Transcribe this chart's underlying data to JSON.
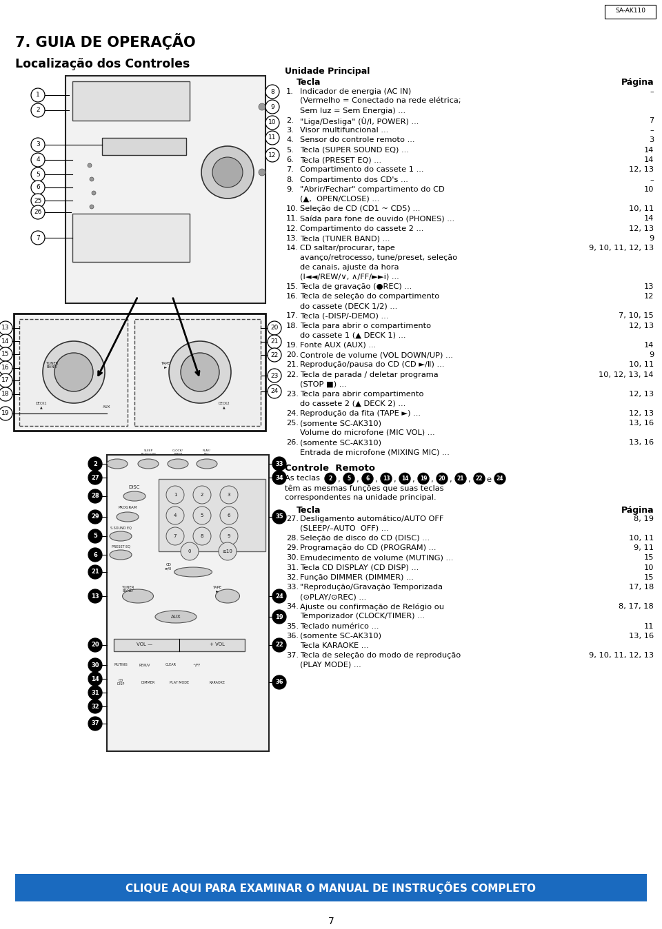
{
  "page_title": "7. GUIA DE OPERAÇÃO",
  "subtitle": "Localização dos Controles",
  "model_label": "SA-AK110",
  "section1_header1": "Unidade Principal",
  "section1_col1": "Tecla",
  "section1_col2": "Página",
  "items_main": [
    {
      "num": "1.",
      "line1": "Indicador de energia (AC IN)",
      "line2": "(Vermelho = Conectado na rede elétrica;",
      "line3": "Sem luz = Sem Energia) ...",
      "page": "–"
    },
    {
      "num": "2.",
      "line1": "\"Liga/Desliga\" (Ù/I, POWER) ...",
      "line2": "",
      "line3": "",
      "page": "7"
    },
    {
      "num": "3.",
      "line1": "Visor multifuncional ...",
      "line2": "",
      "line3": "",
      "page": "–"
    },
    {
      "num": "4.",
      "line1": "Sensor do controle remoto ...",
      "line2": "",
      "line3": "",
      "page": "3"
    },
    {
      "num": "5.",
      "line1": "Tecla (SUPER SOUND EQ) ...",
      "line2": "",
      "line3": "",
      "page": "14"
    },
    {
      "num": "6.",
      "line1": "Tecla (PRESET EQ) ...",
      "line2": "",
      "line3": "",
      "page": "14"
    },
    {
      "num": "7.",
      "line1": "Compartimento do cassete 1 ...",
      "line2": "",
      "line3": "",
      "page": "12, 13"
    },
    {
      "num": "8.",
      "line1": "Compartimento dos CD's ...",
      "line2": "",
      "line3": "",
      "page": "–"
    },
    {
      "num": "9.",
      "line1": "\"Abrir/Fechar\" compartimento do CD",
      "line2": "(▲,  OPEN/CLOSE) ...",
      "line3": "",
      "page": "10"
    },
    {
      "num": "10.",
      "line1": "Seleção de CD (CD1 ~ CD5) ...",
      "line2": "",
      "line3": "",
      "page": "10, 11"
    },
    {
      "num": "11.",
      "line1": "Saída para fone de ouvido (PHONES) ...",
      "line2": "",
      "line3": "",
      "page": "14"
    },
    {
      "num": "12.",
      "line1": "Compartimento do cassete 2 ...",
      "line2": "",
      "line3": "",
      "page": "12, 13"
    },
    {
      "num": "13.",
      "line1": "Tecla (TUNER BAND) ...",
      "line2": "",
      "line3": "",
      "page": "9"
    },
    {
      "num": "14.",
      "line1": "CD saltar/procurar, tape",
      "line2": "avanço/retrocesso, tune/preset, seleção",
      "line3": "de canais, ajuste da hora",
      "line4": "(I◄◄/REW/∨, ∧/FF/►►i) ...",
      "page": "9, 10, 11, 12, 13"
    },
    {
      "num": "15.",
      "line1": "Tecla de gravação (●REC) ...",
      "line2": "",
      "line3": "",
      "page": "13"
    },
    {
      "num": "16.",
      "line1": "Tecla de seleção do compartimento",
      "line2": "do cassete (DECK 1/2) ...",
      "line3": "",
      "page": "12"
    },
    {
      "num": "17.",
      "line1": "Tecla (-DISP/-DEMO) ...",
      "line2": "",
      "line3": "",
      "page": "7, 10, 15"
    },
    {
      "num": "18.",
      "line1": "Tecla para abrir o compartimento",
      "line2": "do cassete 1 (▲ DECK 1) ...",
      "line3": "",
      "page": "12, 13"
    },
    {
      "num": "19.",
      "line1": "Fonte AUX (AUX) ...",
      "line2": "",
      "line3": "",
      "page": "14"
    },
    {
      "num": "20.",
      "line1": "Controle de volume (VOL DOWN/UP) ...",
      "line2": "",
      "line3": "",
      "page": "9"
    },
    {
      "num": "21.",
      "line1": "Reprodução/pausa do CD (CD ►/Ⅱ) ...",
      "line2": "",
      "line3": "",
      "page": "10, 11"
    },
    {
      "num": "22.",
      "line1": "Tecla de parada / deletar programa",
      "line2": "(STOP ■) ...",
      "line3": "",
      "page": "10, 12, 13, 14"
    },
    {
      "num": "23.",
      "line1": "Tecla para abrir compartimento",
      "line2": "do cassete 2 (▲ DECK 2) ...",
      "line3": "",
      "page": "12, 13"
    },
    {
      "num": "24.",
      "line1": "Reprodução da fita (TAPE ►) ...",
      "line2": "",
      "line3": "",
      "page": "12, 13"
    },
    {
      "num": "25.",
      "line1": "(somente SC-AK310)",
      "line2": "Volume do microfone (MIC VOL) ...",
      "line3": "",
      "page": "13, 16"
    },
    {
      "num": "26.",
      "line1": "(somente SC-AK310)",
      "line2": "Entrada de microfone (MIXING MIC) ...",
      "line3": "",
      "page": "13, 16"
    }
  ],
  "section2_header": "Controle  Remoto",
  "section2_intro": "As teclas",
  "section2_numbers": [
    "2",
    "5",
    "6",
    "13",
    "14",
    "19",
    "20",
    "21",
    "22",
    "24"
  ],
  "section2_mid1": "têm as mesmas funções que suas teclas",
  "section2_mid2": "correspondentes na unidade principal.",
  "section2_col1": "Tecla",
  "section2_col2": "Página",
  "items_remote": [
    {
      "num": "27.",
      "line1": "Desligamento automático/AUTO OFF",
      "line2": "(SLEEP/–AUTO  OFF) ...",
      "line3": "",
      "page": "8, 19"
    },
    {
      "num": "28.",
      "line1": "Seleção de disco do CD (DISC) ...",
      "line2": "",
      "line3": "",
      "page": "10, 11"
    },
    {
      "num": "29.",
      "line1": "Programação do CD (PROGRAM) ...",
      "line2": "",
      "line3": "",
      "page": "9, 11"
    },
    {
      "num": "30.",
      "line1": "Emudecimento de volume (MUTING) ...",
      "line2": "",
      "line3": "",
      "page": "15"
    },
    {
      "num": "31.",
      "line1": "Tecla CD DISPLAY (CD DISP) ...",
      "line2": "",
      "line3": "",
      "page": "10"
    },
    {
      "num": "32.",
      "line1": "Função DIMMER (DIMMER) ...",
      "line2": "",
      "line3": "",
      "page": "15"
    },
    {
      "num": "33.",
      "line1": "\"Reprodução/Gravação Temporizada",
      "line2": "(⊙PLAY/⊙REC) ...",
      "line3": "",
      "page": "17, 18"
    },
    {
      "num": "34.",
      "line1": "Ajuste ou confirmação de Relógio ou",
      "line2": "Temporizador (CLOCK/TIMER) ...",
      "line3": "",
      "page": "8, 17, 18"
    },
    {
      "num": "35.",
      "line1": "Teclado numérico ...",
      "line2": "",
      "line3": "",
      "page": "11"
    },
    {
      "num": "36.",
      "line1": "(somente SC-AK310)",
      "line2": "Tecla KARAOKE ...",
      "line3": "",
      "page": "13, 16"
    },
    {
      "num": "37.",
      "line1": "Tecla de seleção do modo de reprodução",
      "line2": "(PLAY MODE) ...",
      "line3": "",
      "page": "9, 10, 11, 12, 13"
    }
  ],
  "footer_text": "CLIQUE AQUI PARA EXAMINAR O MANUAL DE INSTRUÇÕES COMPLETO",
  "page_number": "7",
  "bg_color": "#ffffff",
  "text_color": "#000000",
  "footer_bg": "#1a6abf",
  "footer_text_color": "#ffffff"
}
